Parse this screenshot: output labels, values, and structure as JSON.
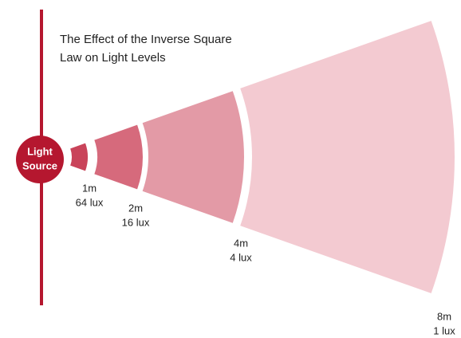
{
  "title_lines": [
    "The Effect of the Inverse Square",
    "Law on Light Levels"
  ],
  "source_lines": [
    "Light",
    "Source"
  ],
  "segments": [
    {
      "distance": "1m",
      "illuminance": "64 lux"
    },
    {
      "distance": "2m",
      "illuminance": "16 lux"
    },
    {
      "distance": "4m",
      "illuminance": "4 lux"
    },
    {
      "distance": "8m",
      "illuminance": "1 lux"
    }
  ]
}
